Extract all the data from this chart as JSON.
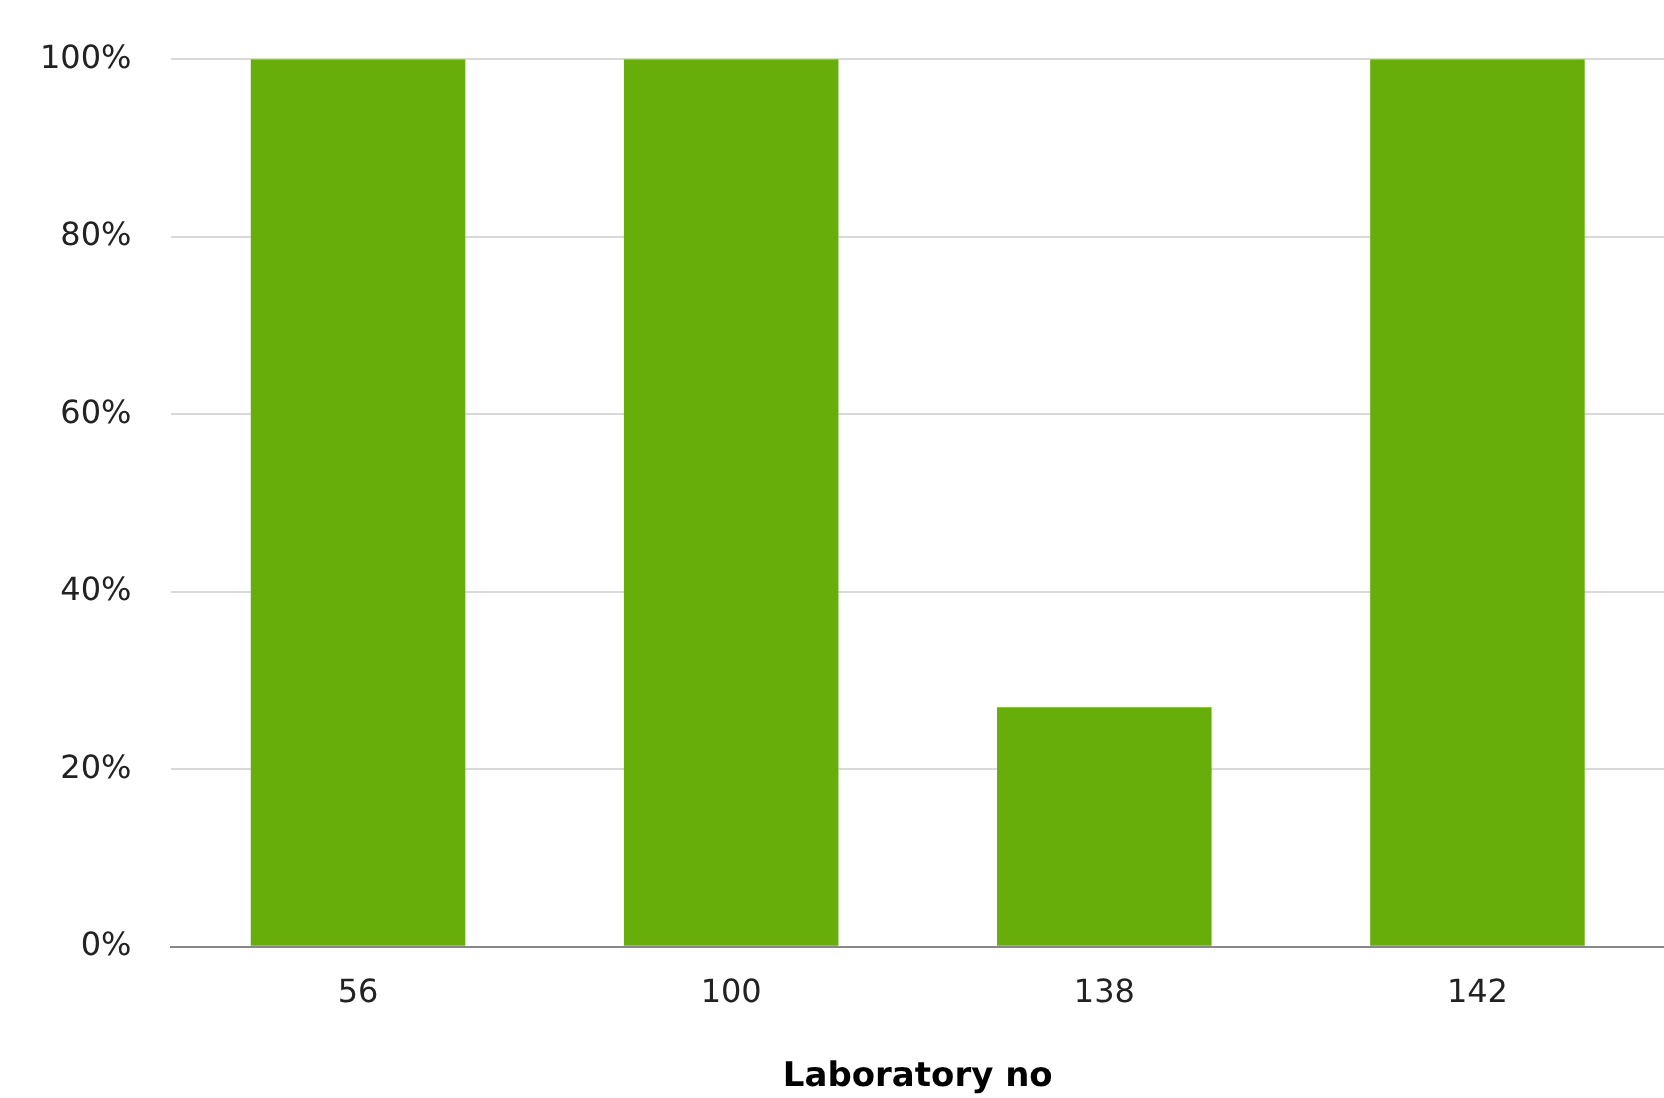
{
  "chart_data": {
    "type": "bar",
    "xlabel": "Laboratory no",
    "categories": [
      "56",
      "100",
      "138",
      "142"
    ],
    "values": [
      100,
      100,
      27,
      100
    ],
    "color": "#67ae0b",
    "ylim": [
      0,
      100
    ],
    "yticks": [
      {
        "value": 0,
        "label": "0%"
      },
      {
        "value": 20,
        "label": "20%"
      },
      {
        "value": 40,
        "label": "40%"
      },
      {
        "value": 60,
        "label": "60%"
      },
      {
        "value": 80,
        "label": "80%"
      },
      {
        "value": 100,
        "label": "100%"
      }
    ],
    "grid": "y",
    "legend": false
  }
}
